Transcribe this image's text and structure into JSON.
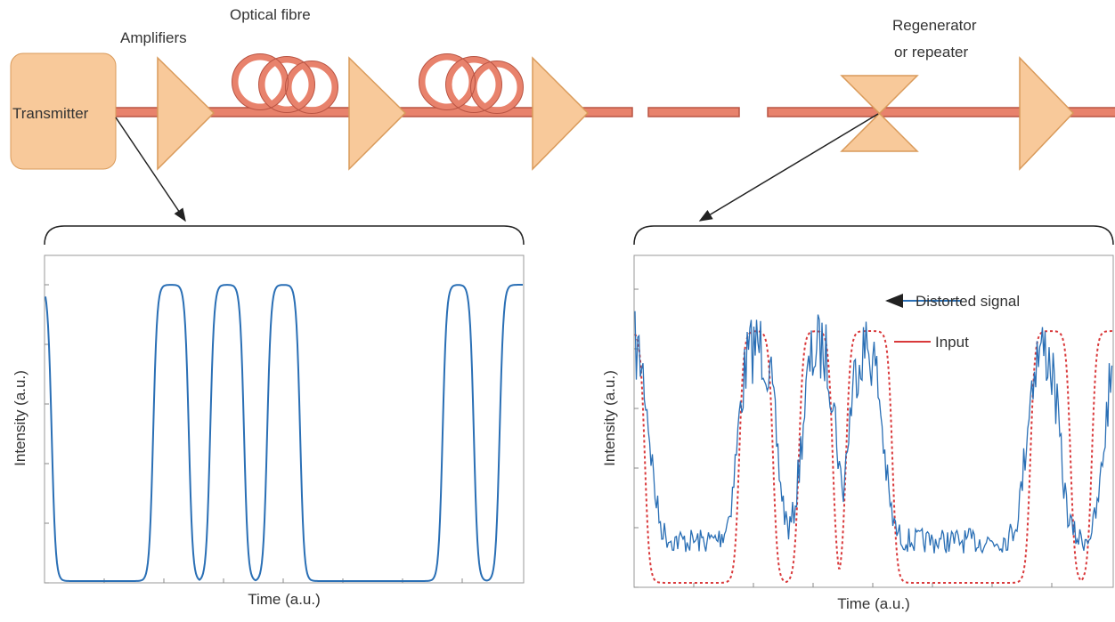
{
  "link": {
    "transmitter": "Transmitter",
    "amplifiers": "Amplifiers",
    "optical_fibre": "Optical fibre",
    "regenerator": [
      "Regenerator",
      "or repeater"
    ]
  },
  "plots": [
    {
      "y_label": "Intensity (a.u.)",
      "x_label": "Time (a.u.)"
    },
    {
      "y_label": "Intensity (a.u.)",
      "x_label": "Time (a.u.)",
      "annotations": [
        {
          "text": "Distorted signal",
          "color": "#2a6fb5"
        },
        {
          "text": "Input",
          "color": "#d9393b"
        }
      ]
    }
  ]
}
